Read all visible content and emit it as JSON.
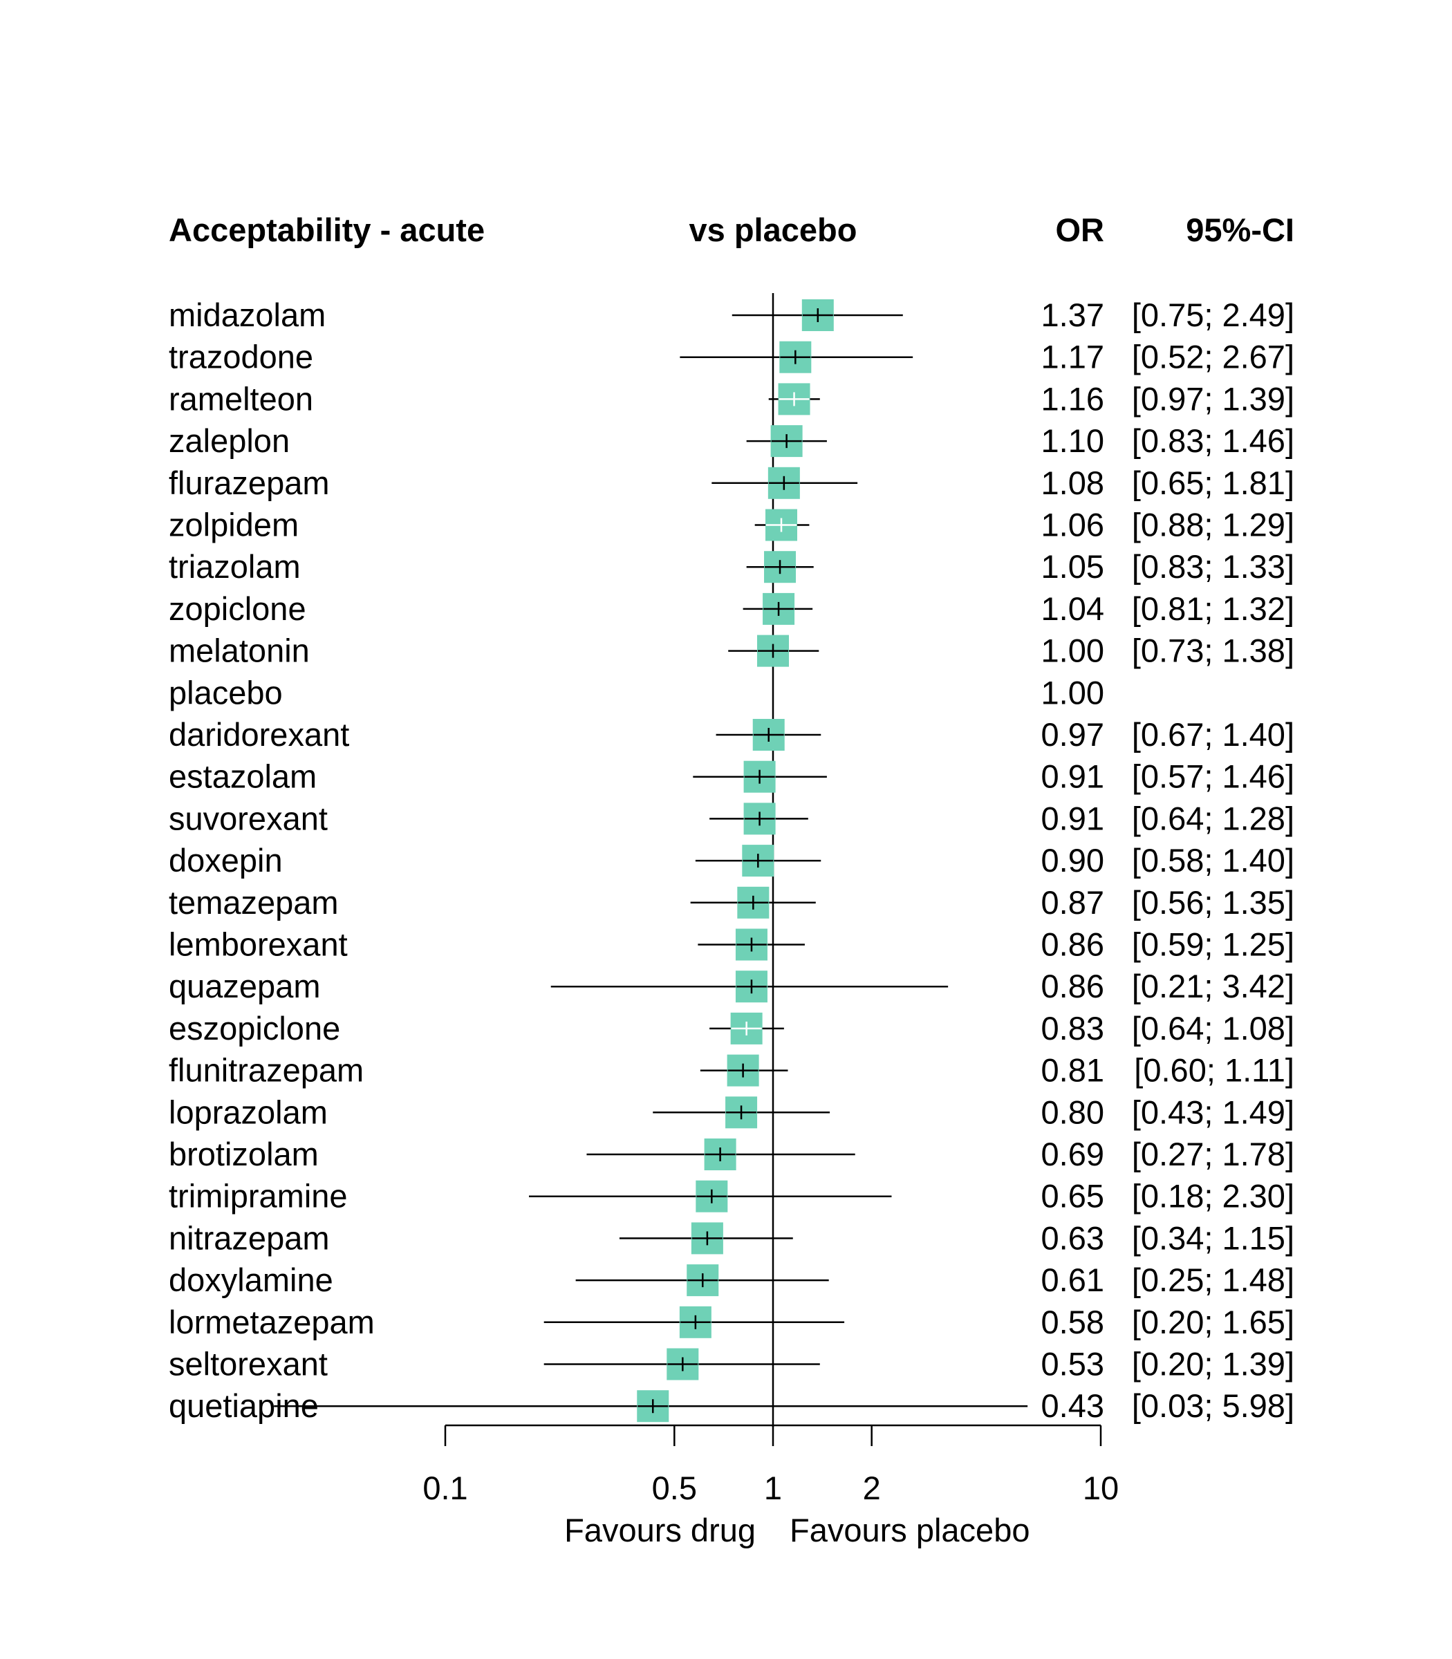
{
  "chart_data": {
    "type": "forest",
    "headers": {
      "study": "Acceptability - acute",
      "comparison": "vs placebo",
      "effect": "OR",
      "ci": "95%-CI"
    },
    "scale": "log",
    "reference_line": 1,
    "x_ticks": [
      0.1,
      0.5,
      1,
      2,
      10
    ],
    "x_tick_labels": [
      "0.1",
      "0.5",
      "1",
      "2",
      "10"
    ],
    "xlim": [
      0.1,
      10
    ],
    "favours_left": "Favours drug",
    "favours_right": "Favours placebo",
    "colors": {
      "box": "#6fd1b6",
      "line": "#000000"
    },
    "rows": [
      {
        "name": "midazolam",
        "or": 1.37,
        "lower": 0.75,
        "upper": 2.49,
        "or_text": "1.37",
        "ci_text": "[0.75; 2.49]"
      },
      {
        "name": "trazodone",
        "or": 1.17,
        "lower": 0.52,
        "upper": 2.67,
        "or_text": "1.17",
        "ci_text": "[0.52; 2.67]"
      },
      {
        "name": "ramelteon",
        "or": 1.16,
        "lower": 0.97,
        "upper": 1.39,
        "or_text": "1.16",
        "ci_text": "[0.97; 1.39]"
      },
      {
        "name": "zaleplon",
        "or": 1.1,
        "lower": 0.83,
        "upper": 1.46,
        "or_text": "1.10",
        "ci_text": "[0.83; 1.46]"
      },
      {
        "name": "flurazepam",
        "or": 1.08,
        "lower": 0.65,
        "upper": 1.81,
        "or_text": "1.08",
        "ci_text": "[0.65; 1.81]"
      },
      {
        "name": "zolpidem",
        "or": 1.06,
        "lower": 0.88,
        "upper": 1.29,
        "or_text": "1.06",
        "ci_text": "[0.88; 1.29]"
      },
      {
        "name": "triazolam",
        "or": 1.05,
        "lower": 0.83,
        "upper": 1.33,
        "or_text": "1.05",
        "ci_text": "[0.83; 1.33]"
      },
      {
        "name": "zopiclone",
        "or": 1.04,
        "lower": 0.81,
        "upper": 1.32,
        "or_text": "1.04",
        "ci_text": "[0.81; 1.32]"
      },
      {
        "name": "melatonin",
        "or": 1.0,
        "lower": 0.73,
        "upper": 1.38,
        "or_text": "1.00",
        "ci_text": "[0.73; 1.38]"
      },
      {
        "name": "placebo",
        "or": 1.0,
        "lower": null,
        "upper": null,
        "or_text": "1.00",
        "ci_text": ""
      },
      {
        "name": "daridorexant",
        "or": 0.97,
        "lower": 0.67,
        "upper": 1.4,
        "or_text": "0.97",
        "ci_text": "[0.67; 1.40]"
      },
      {
        "name": "estazolam",
        "or": 0.91,
        "lower": 0.57,
        "upper": 1.46,
        "or_text": "0.91",
        "ci_text": "[0.57; 1.46]"
      },
      {
        "name": "suvorexant",
        "or": 0.91,
        "lower": 0.64,
        "upper": 1.28,
        "or_text": "0.91",
        "ci_text": "[0.64; 1.28]"
      },
      {
        "name": "doxepin",
        "or": 0.9,
        "lower": 0.58,
        "upper": 1.4,
        "or_text": "0.90",
        "ci_text": "[0.58; 1.40]"
      },
      {
        "name": "temazepam",
        "or": 0.87,
        "lower": 0.56,
        "upper": 1.35,
        "or_text": "0.87",
        "ci_text": "[0.56; 1.35]"
      },
      {
        "name": "lemborexant",
        "or": 0.86,
        "lower": 0.59,
        "upper": 1.25,
        "or_text": "0.86",
        "ci_text": "[0.59; 1.25]"
      },
      {
        "name": "quazepam",
        "or": 0.86,
        "lower": 0.21,
        "upper": 3.42,
        "or_text": "0.86",
        "ci_text": "[0.21; 3.42]"
      },
      {
        "name": "eszopiclone",
        "or": 0.83,
        "lower": 0.64,
        "upper": 1.08,
        "or_text": "0.83",
        "ci_text": "[0.64; 1.08]"
      },
      {
        "name": "flunitrazepam",
        "or": 0.81,
        "lower": 0.6,
        "upper": 1.11,
        "or_text": "0.81",
        "ci_text": "[0.60; 1.11]"
      },
      {
        "name": "loprazolam",
        "or": 0.8,
        "lower": 0.43,
        "upper": 1.49,
        "or_text": "0.80",
        "ci_text": "[0.43; 1.49]"
      },
      {
        "name": "brotizolam",
        "or": 0.69,
        "lower": 0.27,
        "upper": 1.78,
        "or_text": "0.69",
        "ci_text": "[0.27; 1.78]"
      },
      {
        "name": "trimipramine",
        "or": 0.65,
        "lower": 0.18,
        "upper": 2.3,
        "or_text": "0.65",
        "ci_text": "[0.18; 2.30]"
      },
      {
        "name": "nitrazepam",
        "or": 0.63,
        "lower": 0.34,
        "upper": 1.15,
        "or_text": "0.63",
        "ci_text": "[0.34; 1.15]"
      },
      {
        "name": "doxylamine",
        "or": 0.61,
        "lower": 0.25,
        "upper": 1.48,
        "or_text": "0.61",
        "ci_text": "[0.25; 1.48]"
      },
      {
        "name": "lormetazepam",
        "or": 0.58,
        "lower": 0.2,
        "upper": 1.65,
        "or_text": "0.58",
        "ci_text": "[0.20; 1.65]"
      },
      {
        "name": "seltorexant",
        "or": 0.53,
        "lower": 0.2,
        "upper": 1.39,
        "or_text": "0.53",
        "ci_text": "[0.20; 1.39]"
      },
      {
        "name": "quetiapine",
        "or": 0.43,
        "lower": 0.03,
        "upper": 5.98,
        "or_text": "0.43",
        "ci_text": "[0.03; 5.98]"
      }
    ]
  }
}
